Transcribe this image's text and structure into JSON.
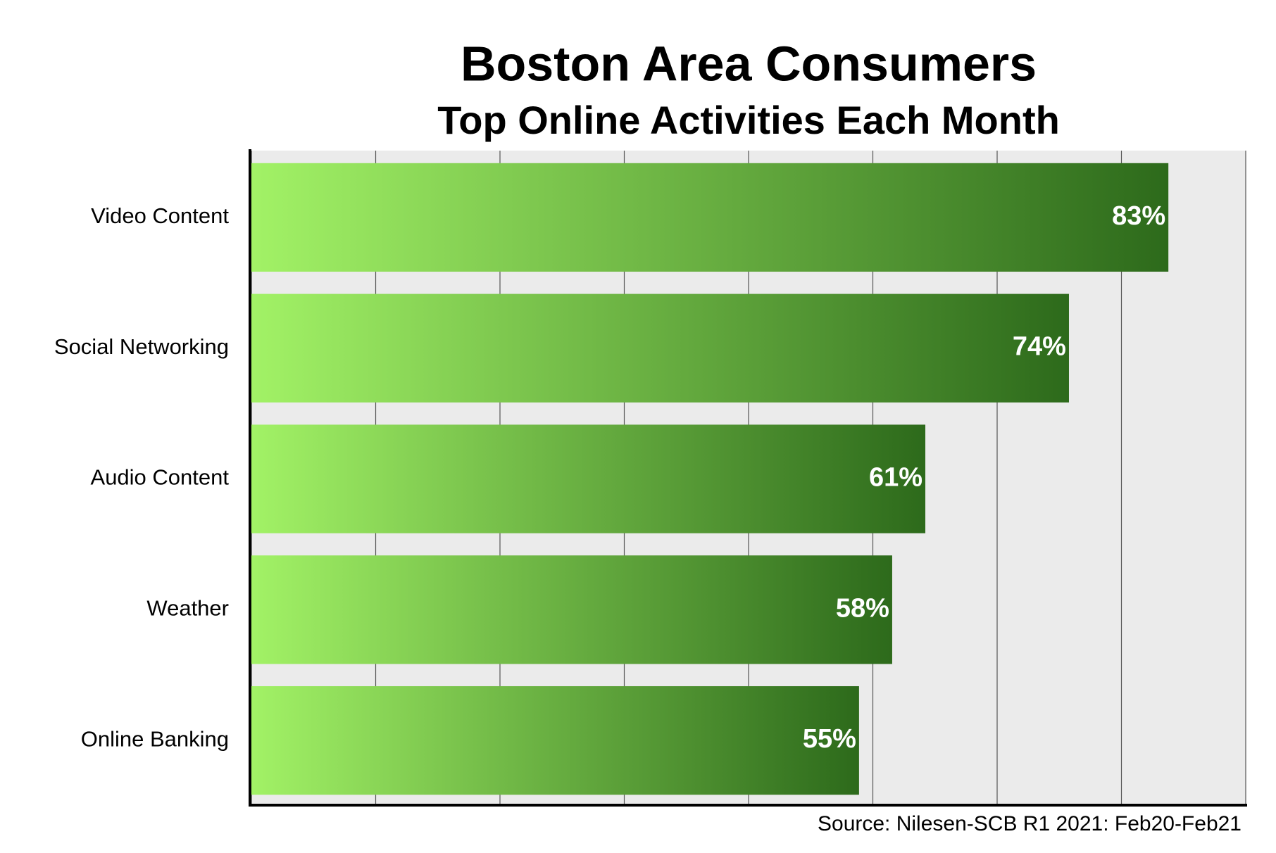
{
  "chart_data": {
    "type": "barh",
    "title": "Boston Area Consumers",
    "subtitle": "Top Online Activities Each Month",
    "source": "Source: Nilesen-SCB R1 2021: Feb20-Feb21",
    "categories": [
      "Video Content",
      "Social Networking",
      "Audio Content",
      "Weather",
      "Online Banking"
    ],
    "values": [
      83,
      74,
      61,
      58,
      55
    ],
    "value_labels": [
      "83%",
      "74%",
      "61%",
      "58%",
      "55%"
    ],
    "color_start": "#a2f266",
    "color_end": "#2d6a1b",
    "xlim": [
      0,
      90
    ],
    "xticks": [
      0,
      11.25,
      22.5,
      33.75,
      45,
      56.25,
      67.5,
      78.75,
      90
    ],
    "grid": true
  }
}
